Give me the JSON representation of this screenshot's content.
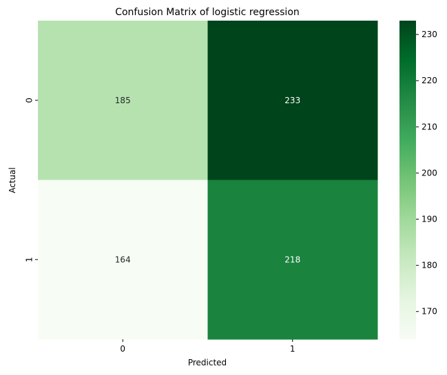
{
  "chart_data": {
    "type": "heatmap",
    "title": "Confusion Matrix of logistic regression",
    "xlabel": "Predicted",
    "ylabel": "Actual",
    "x_categories": [
      "0",
      "1"
    ],
    "y_categories": [
      "0",
      "1"
    ],
    "values": [
      [
        185,
        233
      ],
      [
        164,
        218
      ]
    ],
    "colormap": "Greens",
    "colorbar": {
      "vmin": 164,
      "vmax": 233,
      "ticks": [
        "170",
        "180",
        "190",
        "200",
        "210",
        "220",
        "230"
      ]
    },
    "grid": false,
    "legend": "colorbar-right"
  }
}
